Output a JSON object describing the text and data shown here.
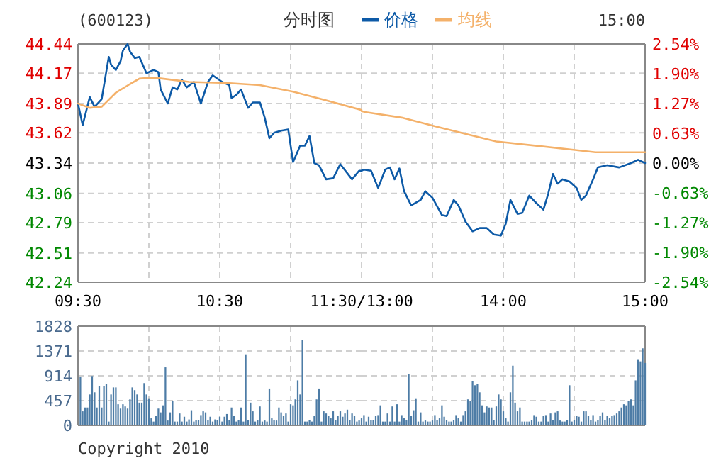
{
  "chart_data": [
    {
      "type": "line",
      "title": "(600123)",
      "subtitle": "分时图",
      "legend": "top",
      "grid": true,
      "xlim": [
        9.5,
        11.5
      ],
      "xticks": [
        {
          "value": 9.5,
          "label": "09:30"
        },
        {
          "value": 10,
          "label": null
        },
        {
          "value": 10.5,
          "label": "10:30"
        },
        {
          "value": 11,
          "label": null
        },
        {
          "value": 11.5,
          "label": "11:30/13:00"
        }
      ],
      "ylim": [
        42.24,
        44.44
      ],
      "yticks": [
        42.24,
        42.51,
        42.79,
        43.06,
        43.34,
        43.62,
        43.89,
        44.17,
        44.44
      ],
      "series": [
        {
          "name": "价格",
          "color": "#0d5aa7",
          "x": [
            9.5,
            9.533,
            9.583,
            9.617,
            9.667,
            9.717,
            9.733,
            9.767,
            9.8,
            9.817,
            9.85,
            9.867,
            9.9,
            9.933,
            9.983,
            10.033,
            10.067,
            10.083,
            10.133,
            10.167,
            10.2,
            10.233,
            10.267,
            10.317,
            10.367,
            10.417,
            10.45,
            10.517,
            10.567,
            10.583,
            10.617,
            10.65,
            10.7,
            10.733,
            10.783,
            10.817,
            10.85,
            10.883,
            10.933,
            10.983,
            11.017,
            11.067,
            11.1,
            11.133,
            11.167,
            11.2,
            11.25,
            11.3,
            11.35,
            11.433,
            11.483,
            11.5
          ],
          "values": [
            43.89,
            43.69,
            43.95,
            43.86,
            43.93,
            44.32,
            44.25,
            44.2,
            44.28,
            44.38,
            44.44,
            44.37,
            44.31,
            44.32,
            44.17,
            44.2,
            44.18,
            44.02,
            43.89,
            44.04,
            44.02,
            44.11,
            44.04,
            44.09,
            43.89,
            44.09,
            44.15,
            44.09,
            44.06,
            43.94,
            43.97,
            44.02,
            43.85,
            43.9,
            43.9,
            43.76,
            43.57,
            43.62,
            43.64,
            43.65,
            43.35,
            43.5,
            43.5,
            43.59,
            43.34,
            43.32,
            43.19,
            43.2,
            43.33,
            43.19,
            43.27,
            43.27
          ]
        },
        {
          "name": "均线",
          "color": "#f4b16a",
          "x": [
            9.5,
            9.583,
            9.667,
            9.767,
            9.867,
            9.933,
            10.033,
            10.283,
            10.55,
            10.783,
            11.017,
            11.25,
            11.5
          ],
          "values": [
            43.89,
            43.85,
            43.86,
            43.99,
            44.07,
            44.12,
            44.13,
            44.09,
            44.08,
            44.06,
            44.0,
            43.92,
            43.83
          ]
        }
      ]
    },
    {
      "type": "line",
      "annotations": [
        "15:00"
      ],
      "grid": true,
      "tick_labels": "x",
      "xlim": [
        13,
        15
      ],
      "xticks": [
        {
          "value": 13.5,
          "label": null
        },
        {
          "value": 14,
          "label": "14:00"
        },
        {
          "value": 14.5,
          "label": null
        },
        {
          "value": 15,
          "label": "15:00"
        }
      ],
      "ylim": [
        42.24,
        44.44
      ],
      "yticks": [
        42.24,
        42.51,
        42.79,
        43.06,
        43.34,
        43.62,
        43.89,
        44.17,
        44.44
      ],
      "y2lim": [
        -2.54,
        2.54
      ],
      "y2ticks": [
        {
          "value": -2.54,
          "label": "-2.54%"
        },
        {
          "value": -1.9,
          "label": "-1.90%"
        },
        {
          "value": -1.27,
          "label": "-1.27%"
        },
        {
          "value": -0.63,
          "label": "-0.63%"
        },
        {
          "value": 0,
          "label": "0.00%"
        },
        {
          "value": 0.63,
          "label": "0.63%"
        },
        {
          "value": 1.27,
          "label": "1.27%"
        },
        {
          "value": 1.9,
          "label": "1.90%"
        },
        {
          "value": 2.54,
          "label": "2.54%"
        }
      ],
      "series": [
        {
          "color": "#0d5aa7",
          "x": [
            13,
            13.017,
            13.067,
            13.117,
            13.167,
            13.2,
            13.233,
            13.267,
            13.3,
            13.35,
            13.417,
            13.45,
            13.5,
            13.567,
            13.6,
            13.65,
            13.683,
            13.733,
            13.783,
            13.833,
            13.883,
            13.933,
            13.983,
            14.017,
            14.05,
            14.1,
            14.133,
            14.183,
            14.233,
            14.283,
            14.317,
            14.35,
            14.383,
            14.417,
            14.467,
            14.517,
            14.55,
            14.583,
            14.633,
            14.667,
            14.733,
            14.817,
            14.9,
            14.95,
            15
          ],
          "values": [
            43.27,
            43.28,
            43.27,
            43.11,
            43.28,
            43.3,
            43.19,
            43.29,
            43.08,
            42.95,
            43.0,
            43.08,
            43.02,
            42.86,
            42.85,
            43.0,
            42.95,
            42.8,
            42.71,
            42.74,
            42.74,
            42.68,
            42.67,
            42.78,
            43.0,
            42.87,
            42.88,
            43.04,
            42.97,
            42.91,
            43.06,
            43.24,
            43.15,
            43.19,
            43.17,
            43.11,
            43.0,
            43.04,
            43.19,
            43.3,
            43.32,
            43.3,
            43.34,
            43.37,
            43.34
          ]
        },
        {
          "color": "#f4b16a",
          "x": [
            13,
            13.033,
            13.283,
            13.517,
            13.95,
            14.517,
            14.65,
            15
          ],
          "values": [
            43.82,
            43.81,
            43.76,
            43.68,
            43.54,
            43.46,
            43.44,
            43.44
          ]
        }
      ]
    },
    {
      "type": "bar",
      "color": "#4d7ca6",
      "grid": true,
      "tick_labels": "y",
      "annotations": [
        "Copyright 2010"
      ],
      "xlim": [
        9.5,
        11.5
      ],
      "xticks": [
        10,
        10.5,
        11
      ],
      "ylim": [
        0,
        1828
      ],
      "yticks": [
        0,
        457,
        914,
        1371,
        1828
      ],
      "x": [
        9.517,
        9.533,
        9.55,
        9.567,
        9.583,
        9.6,
        9.617,
        9.633,
        9.65,
        9.667,
        9.683,
        9.7,
        9.717,
        9.733,
        9.75,
        9.767,
        9.783,
        9.8,
        9.817,
        9.833,
        9.85,
        9.867,
        9.883,
        9.9,
        9.917,
        9.933,
        9.95,
        9.967,
        9.983,
        10,
        10.017,
        10.033,
        10.05,
        10.067,
        10.083,
        10.1,
        10.117,
        10.133,
        10.15,
        10.167,
        10.183,
        10.2,
        10.217,
        10.233,
        10.25,
        10.267,
        10.283,
        10.3,
        10.317,
        10.333,
        10.35,
        10.367,
        10.383,
        10.4,
        10.417,
        10.433,
        10.45,
        10.467,
        10.483,
        10.5,
        10.517,
        10.533,
        10.55,
        10.567,
        10.583,
        10.6,
        10.617,
        10.633,
        10.65,
        10.667,
        10.683,
        10.7,
        10.717,
        10.733,
        10.75,
        10.767,
        10.783,
        10.8,
        10.817,
        10.833,
        10.85,
        10.867,
        10.883,
        10.9,
        10.917,
        10.933,
        10.95,
        10.967,
        10.983,
        11,
        11.017,
        11.033,
        11.05,
        11.067,
        11.083,
        11.1,
        11.117,
        11.133,
        11.15,
        11.167,
        11.183,
        11.2,
        11.217,
        11.233,
        11.25,
        11.267,
        11.283,
        11.3,
        11.317,
        11.333,
        11.35,
        11.367,
        11.383,
        11.4,
        11.417,
        11.433,
        11.45,
        11.467,
        11.483,
        11.5
      ],
      "values": [
        890,
        260,
        330,
        330,
        570,
        910,
        610,
        330,
        720,
        330,
        720,
        770,
        70,
        570,
        700,
        700,
        390,
        310,
        390,
        350,
        310,
        480,
        700,
        650,
        570,
        420,
        420,
        780,
        570,
        500,
        130,
        70,
        170,
        310,
        240,
        370,
        1070,
        90,
        240,
        450,
        70,
        70,
        220,
        70,
        160,
        70,
        110,
        280,
        70,
        100,
        100,
        190,
        260,
        240,
        100,
        160,
        70,
        110,
        100,
        160,
        70,
        160,
        210,
        100,
        330,
        170,
        70,
        100,
        330,
        70,
        1310,
        100,
        420,
        260,
        70,
        100,
        350,
        70,
        90,
        70,
        680,
        130,
        100,
        90,
        330,
        240,
        170,
        220,
        70,
        390,
        370,
        480,
        830,
        570,
        1570,
        70,
        70,
        100,
        70,
        170,
        480,
        680,
        70,
        260,
        220,
        170,
        130,
        260,
        100,
        170,
        260,
        160,
        220,
        290,
        100,
        220,
        170,
        70,
        90,
        130
      ]
    },
    {
      "type": "bar",
      "color": "#4d7ca6",
      "grid": true,
      "tick_labels": false,
      "xlim": [
        13,
        15
      ],
      "xticks": [
        13.5,
        14,
        14.5
      ],
      "ylim": [
        0,
        1828
      ],
      "yticks": [
        0,
        457,
        914,
        1371,
        1828
      ],
      "x": [
        13.017,
        13.033,
        13.05,
        13.067,
        13.083,
        13.1,
        13.117,
        13.133,
        13.15,
        13.167,
        13.183,
        13.2,
        13.217,
        13.233,
        13.25,
        13.267,
        13.283,
        13.3,
        13.317,
        13.333,
        13.35,
        13.367,
        13.383,
        13.4,
        13.417,
        13.433,
        13.45,
        13.467,
        13.483,
        13.5,
        13.517,
        13.533,
        13.55,
        13.567,
        13.583,
        13.6,
        13.617,
        13.633,
        13.65,
        13.667,
        13.683,
        13.7,
        13.717,
        13.733,
        13.75,
        13.767,
        13.783,
        13.8,
        13.817,
        13.833,
        13.85,
        13.867,
        13.883,
        13.9,
        13.917,
        13.933,
        13.95,
        13.967,
        13.983,
        14,
        14.017,
        14.033,
        14.05,
        14.067,
        14.083,
        14.1,
        14.117,
        14.133,
        14.15,
        14.167,
        14.183,
        14.2,
        14.217,
        14.233,
        14.25,
        14.267,
        14.283,
        14.3,
        14.317,
        14.333,
        14.35,
        14.367,
        14.383,
        14.4,
        14.417,
        14.433,
        14.45,
        14.467,
        14.483,
        14.5,
        14.517,
        14.533,
        14.55,
        14.567,
        14.583,
        14.6,
        14.617,
        14.633,
        14.65,
        14.667,
        14.683,
        14.7,
        14.717,
        14.733,
        14.75,
        14.767,
        14.783,
        14.8,
        14.817,
        14.833,
        14.85,
        14.867,
        14.883,
        14.9,
        14.917,
        14.933,
        14.95,
        14.967,
        14.983,
        15
      ],
      "values": [
        190,
        70,
        160,
        100,
        100,
        170,
        190,
        370,
        70,
        70,
        220,
        70,
        350,
        70,
        390,
        70,
        190,
        130,
        100,
        940,
        170,
        280,
        500,
        70,
        240,
        70,
        90,
        70,
        70,
        90,
        190,
        100,
        130,
        370,
        160,
        100,
        70,
        70,
        100,
        190,
        130,
        70,
        190,
        260,
        480,
        450,
        810,
        740,
        770,
        610,
        370,
        240,
        350,
        330,
        330,
        100,
        350,
        570,
        480,
        260,
        130,
        70,
        610,
        1100,
        420,
        260,
        330,
        70,
        70,
        70,
        70,
        100,
        190,
        160,
        70,
        70,
        170,
        190,
        70,
        220,
        100,
        240,
        260,
        90,
        70,
        70,
        100,
        740,
        70,
        100,
        170,
        160,
        70,
        260,
        260,
        170,
        100,
        190,
        70,
        100,
        170,
        240,
        100,
        170,
        130,
        170,
        190,
        220,
        260,
        330,
        390,
        370,
        450,
        480,
        370,
        830,
        1220,
        1180,
        1420,
        1150
      ]
    }
  ]
}
